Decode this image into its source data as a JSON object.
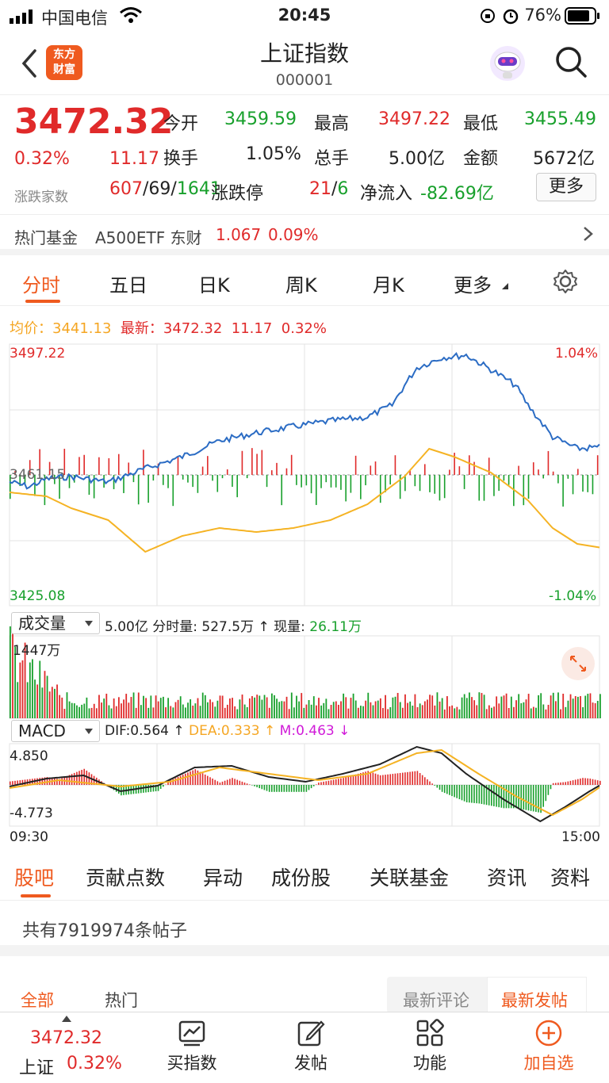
{
  "status": {
    "carrier": "中国电信",
    "time": "20:45",
    "battery": "76%"
  },
  "header": {
    "title": "上证指数",
    "code": "000001",
    "logo_line1": "东方",
    "logo_line2": "财富"
  },
  "quote": {
    "price": "3472.32",
    "pct": "0.32%",
    "change": "11.17",
    "open_label": "今开",
    "open": "3459.59",
    "high_label": "最高",
    "high": "3497.22",
    "low_label": "最低",
    "low": "3455.49",
    "turnover_label": "换手",
    "turnover": "1.05%",
    "volume_label": "总手",
    "volume": "5.00亿",
    "amount_label": "金额",
    "amount": "5672亿",
    "breadth_label": "涨跌家数",
    "up": "607",
    "flat": "69",
    "down": "1641",
    "limit_label": "涨跌停",
    "limit_up": "21",
    "limit_down": "6",
    "netflow_label": "净流入",
    "netflow": "-82.69亿",
    "more": "更多"
  },
  "fund": {
    "label": "热门基金",
    "name": "A500ETF 东财",
    "price": "1.067",
    "pct": "0.09%"
  },
  "tabs": [
    "分时",
    "五日",
    "日K",
    "周K",
    "月K",
    "更多"
  ],
  "intraday": {
    "avg_label": "均价：",
    "avg": "3441.13",
    "latest_label": "最新：",
    "latest": "3472.32",
    "latest_chg": "11.17",
    "latest_pct": "0.32%",
    "top_price": "3497.22",
    "top_pct": "1.04%",
    "bottom_price": "3425.08",
    "bottom_pct": "-1.04%",
    "mid_price": "3461.15"
  },
  "volume": {
    "selector": "成交量",
    "total": "5.00亿",
    "bar_label": "分时量:",
    "bar_value": "527.5万",
    "now_label": "现量:",
    "now_value": "26.11万",
    "max": "1447万"
  },
  "macd": {
    "selector": "MACD",
    "dif_label": "DIF:",
    "dif": "0.564",
    "dea_label": "DEA:",
    "dea": "0.333",
    "m_label": "M:",
    "m": "0.463",
    "max": "4.850",
    "min": "-4.773",
    "start": "09:30",
    "end": "15:00"
  },
  "bottom_tabs": [
    "股吧",
    "贡献点数",
    "异动",
    "成份股",
    "关联基金",
    "资讯",
    "资料"
  ],
  "posts": {
    "text": "共有7919974条帖子"
  },
  "subtabs": {
    "all": "全部",
    "hot": "热门",
    "latest_comment": "最新评论",
    "latest_post": "最新发帖"
  },
  "navbar": {
    "price": "3472.32",
    "name": "上证",
    "pct": "0.32%",
    "buy": "买指数",
    "post": "发帖",
    "func": "功能",
    "add": "加自选"
  },
  "colors": {
    "accent": "#ef5a1f",
    "up": "#e02a2a",
    "down": "#18a02c",
    "price_line": "#2b6cc4",
    "avg_line": "#f5b324"
  }
}
